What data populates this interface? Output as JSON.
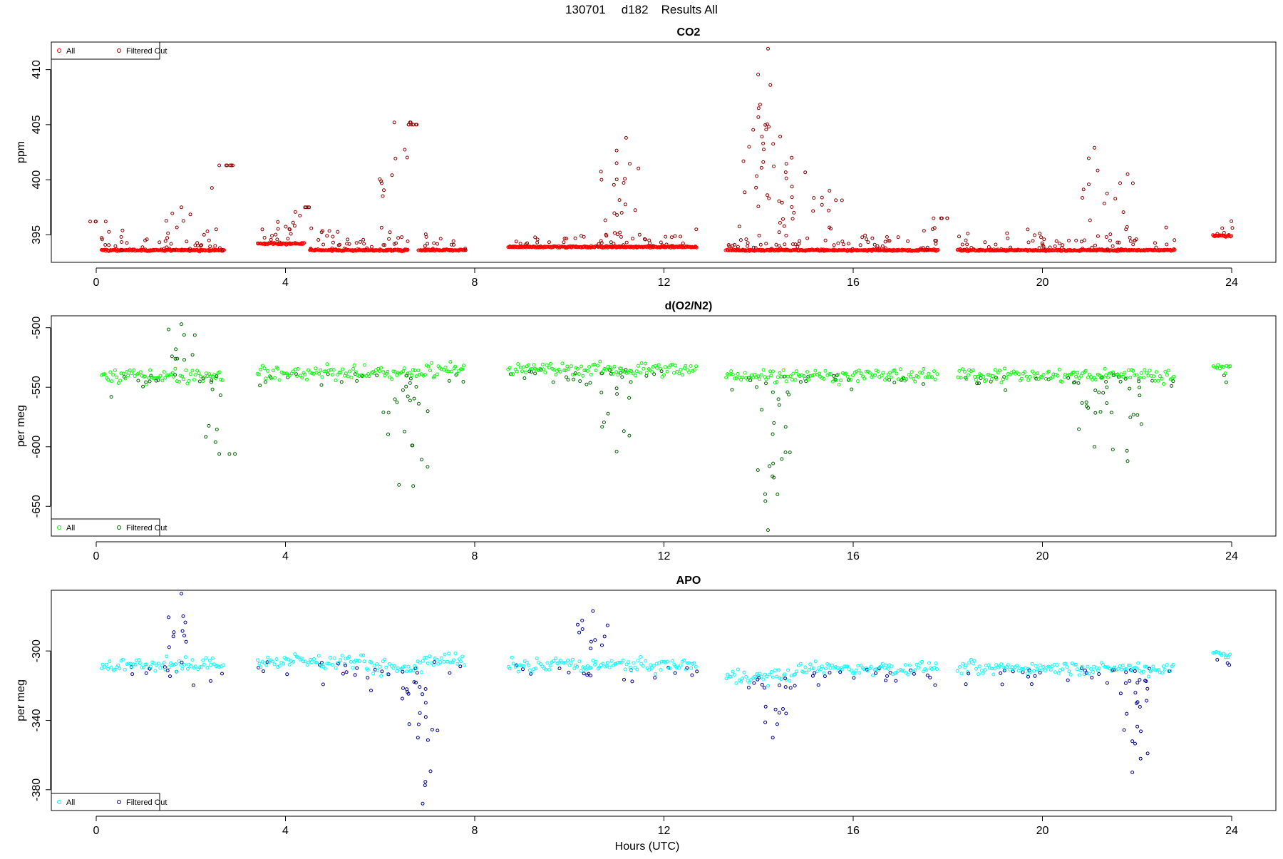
{
  "figure": {
    "title_date": "130701",
    "title_id": "d182",
    "title_label": "Results All",
    "xlabel": "Hours (UTC)"
  },
  "chart_data": [
    {
      "type": "scatter",
      "title": "CO2",
      "ylabel": "ppm",
      "xlim": [
        0,
        24
      ],
      "ylim": [
        392.5,
        412.5
      ],
      "x_ticks": [
        0,
        4,
        8,
        12,
        16,
        20,
        24
      ],
      "y_ticks": [
        395,
        400,
        405,
        410
      ],
      "legend_position": "top-left",
      "series": [
        {
          "name": "All",
          "color": "#ff0000",
          "style": "dense baseline"
        },
        {
          "name": "Filtered Out",
          "color": "#8b0000",
          "style": "sparse excursions"
        }
      ],
      "segments": [
        {
          "start": 0.1,
          "end": 2.7,
          "baseline": 393.6
        },
        {
          "start": 3.4,
          "end": 4.4,
          "baseline": 394.2
        },
        {
          "start": 4.5,
          "end": 6.6,
          "baseline": 393.6
        },
        {
          "start": 6.8,
          "end": 7.8,
          "baseline": 393.6
        },
        {
          "start": 8.7,
          "end": 12.7,
          "baseline": 393.9
        },
        {
          "start": 13.3,
          "end": 14.8,
          "baseline": 393.6
        },
        {
          "start": 14.8,
          "end": 17.8,
          "baseline": 393.6
        },
        {
          "start": 18.2,
          "end": 22.8,
          "baseline": 393.6
        },
        {
          "start": 23.6,
          "end": 24.0,
          "baseline": 394.9
        }
      ],
      "peaks": [
        {
          "x": 0.2,
          "y": 396.2
        },
        {
          "x": 1.8,
          "y": 397.5
        },
        {
          "x": 2.6,
          "y": 401.3
        },
        {
          "x": 4.5,
          "y": 397.5
        },
        {
          "x": 6.3,
          "y": 405.2
        },
        {
          "x": 6.6,
          "y": 405
        },
        {
          "x": 11.0,
          "y": 401.5
        },
        {
          "x": 11.2,
          "y": 403.8
        },
        {
          "x": 14.0,
          "y": 406.5
        },
        {
          "x": 14.2,
          "y": 411.9
        },
        {
          "x": 14.25,
          "y": 408.6
        },
        {
          "x": 14.7,
          "y": 402
        },
        {
          "x": 15.5,
          "y": 399
        },
        {
          "x": 17.7,
          "y": 396.5
        },
        {
          "x": 21.1,
          "y": 402.9
        },
        {
          "x": 21.8,
          "y": 400.5
        }
      ]
    },
    {
      "type": "scatter",
      "title": "d(O2/N2)",
      "ylabel": "per meg",
      "xlim": [
        0,
        24
      ],
      "ylim": [
        -675,
        -490
      ],
      "x_ticks": [
        0,
        4,
        8,
        12,
        16,
        20,
        24
      ],
      "y_ticks": [
        -500,
        -550,
        -600,
        -650
      ],
      "legend_position": "bottom-left",
      "series": [
        {
          "name": "All",
          "color": "#00ff00",
          "style": "dense baseline"
        },
        {
          "name": "Filtered Out",
          "color": "#006400",
          "style": "sparse excursions"
        }
      ],
      "segments": [
        {
          "start": 0.1,
          "end": 2.7,
          "baseline": -540
        },
        {
          "start": 3.4,
          "end": 5.7,
          "baseline": -538
        },
        {
          "start": 5.7,
          "end": 6.9,
          "baseline": -538
        },
        {
          "start": 6.9,
          "end": 7.8,
          "baseline": -535
        },
        {
          "start": 8.7,
          "end": 12.7,
          "baseline": -535
        },
        {
          "start": 13.3,
          "end": 14.8,
          "baseline": -540
        },
        {
          "start": 14.8,
          "end": 17.8,
          "baseline": -540
        },
        {
          "start": 18.2,
          "end": 22.8,
          "baseline": -540
        },
        {
          "start": 23.6,
          "end": 24.0,
          "baseline": -535
        }
      ],
      "peaks": [
        {
          "x": 1.8,
          "y": -497
        },
        {
          "x": 2.6,
          "y": -606
        },
        {
          "x": 6.4,
          "y": -632
        },
        {
          "x": 6.7,
          "y": -633
        },
        {
          "x": 11.0,
          "y": -604
        },
        {
          "x": 14.2,
          "y": -670
        },
        {
          "x": 14.4,
          "y": -640
        },
        {
          "x": 21.1,
          "y": -600
        },
        {
          "x": 21.8,
          "y": -612
        }
      ]
    },
    {
      "type": "scatter",
      "title": "APO",
      "ylabel": "per meg",
      "xlim": [
        0,
        24
      ],
      "ylim": [
        -392,
        -265
      ],
      "x_ticks": [
        0,
        4,
        8,
        12,
        16,
        20,
        24
      ],
      "y_ticks": [
        -300,
        -340,
        -380
      ],
      "legend_position": "bottom-left",
      "series": [
        {
          "name": "All",
          "color": "#00ffff",
          "style": "dense baseline"
        },
        {
          "name": "Filtered Out",
          "color": "#00008b",
          "style": "sparse excursions"
        }
      ],
      "segments": [
        {
          "start": 0.1,
          "end": 2.7,
          "baseline": -308
        },
        {
          "start": 3.4,
          "end": 5.7,
          "baseline": -306
        },
        {
          "start": 5.7,
          "end": 6.9,
          "baseline": -310
        },
        {
          "start": 6.9,
          "end": 7.8,
          "baseline": -305
        },
        {
          "start": 8.7,
          "end": 12.7,
          "baseline": -308
        },
        {
          "start": 13.3,
          "end": 14.8,
          "baseline": -315
        },
        {
          "start": 14.8,
          "end": 17.8,
          "baseline": -310
        },
        {
          "start": 18.2,
          "end": 22.8,
          "baseline": -310
        },
        {
          "start": 23.6,
          "end": 24.0,
          "baseline": -302
        }
      ],
      "peaks": [
        {
          "x": 1.8,
          "y": -267
        },
        {
          "x": 6.9,
          "y": -388
        },
        {
          "x": 6.8,
          "y": -350
        },
        {
          "x": 10.5,
          "y": -277
        },
        {
          "x": 14.3,
          "y": -350
        },
        {
          "x": 21.9,
          "y": -370
        },
        {
          "x": 21.9,
          "y": -352
        }
      ]
    }
  ]
}
